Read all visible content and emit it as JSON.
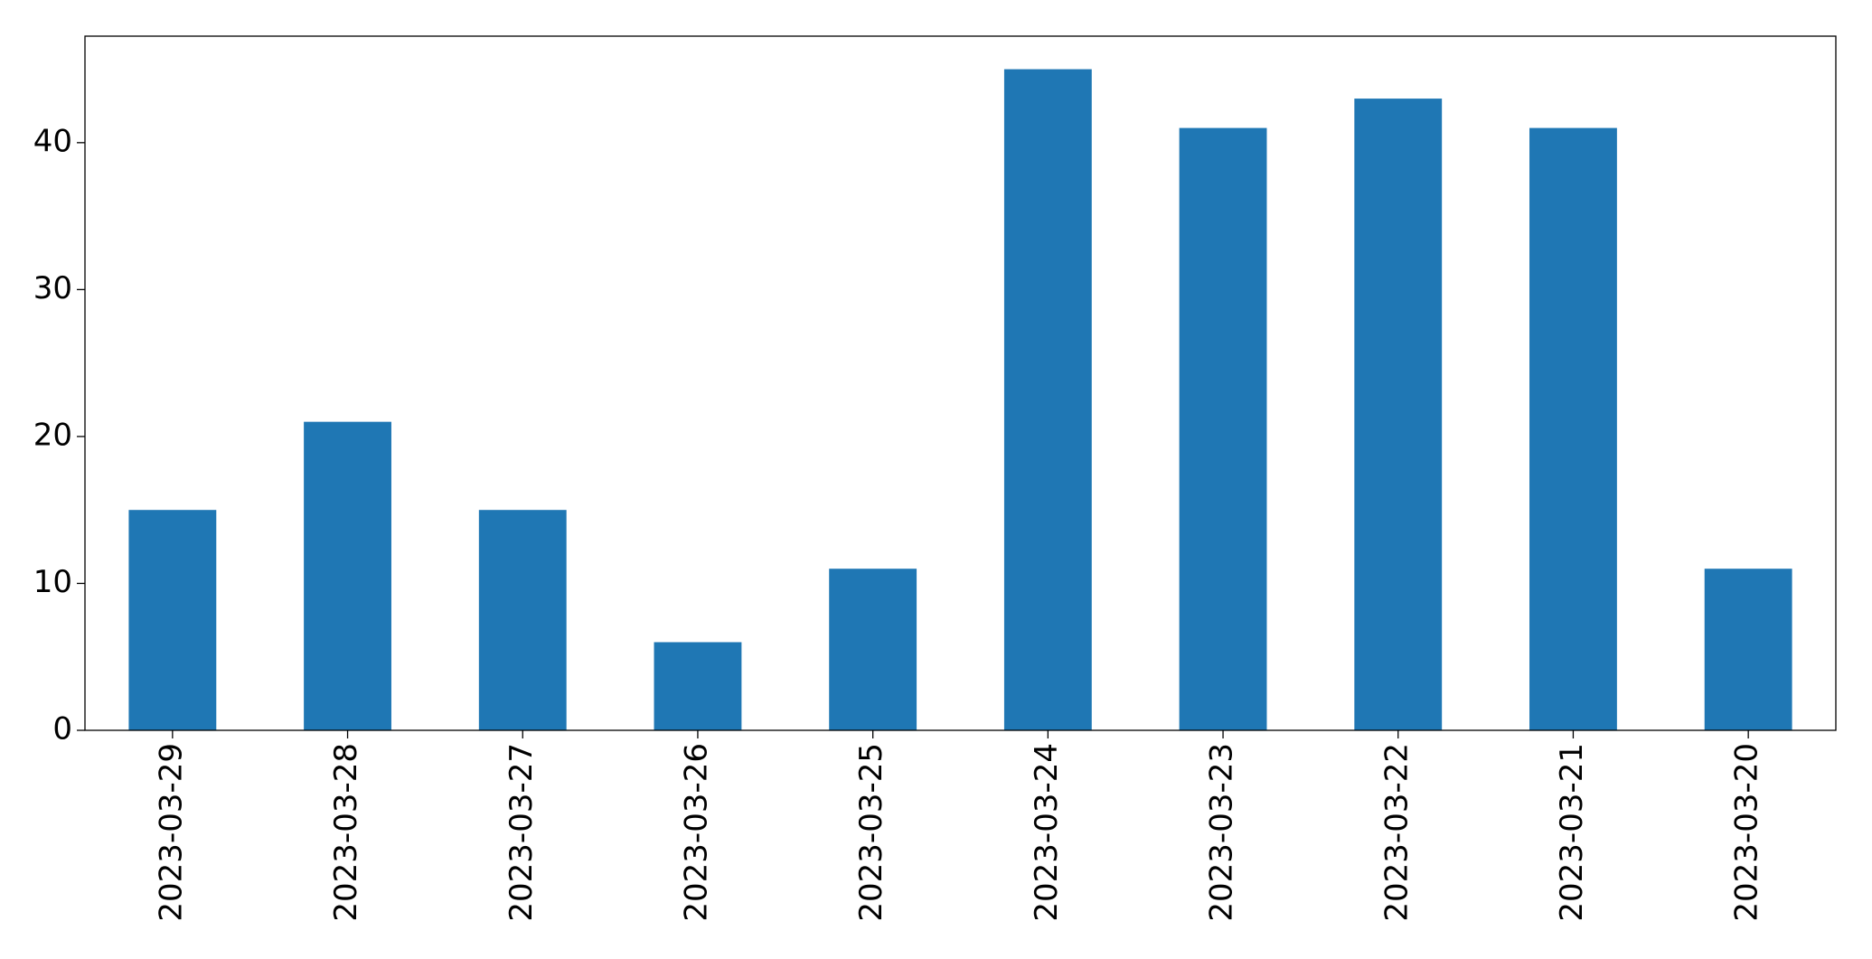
{
  "chart_data": {
    "type": "bar",
    "categories": [
      "2023-03-29",
      "2023-03-28",
      "2023-03-27",
      "2023-03-26",
      "2023-03-25",
      "2023-03-24",
      "2023-03-23",
      "2023-03-22",
      "2023-03-21",
      "2023-03-20"
    ],
    "values": [
      15,
      21,
      15,
      6,
      11,
      45,
      41,
      43,
      41,
      11
    ],
    "color": "#1f77b4",
    "ylim": [
      0,
      47.25
    ],
    "yticks": [
      0,
      10,
      20,
      30,
      40
    ],
    "grid": false
  }
}
